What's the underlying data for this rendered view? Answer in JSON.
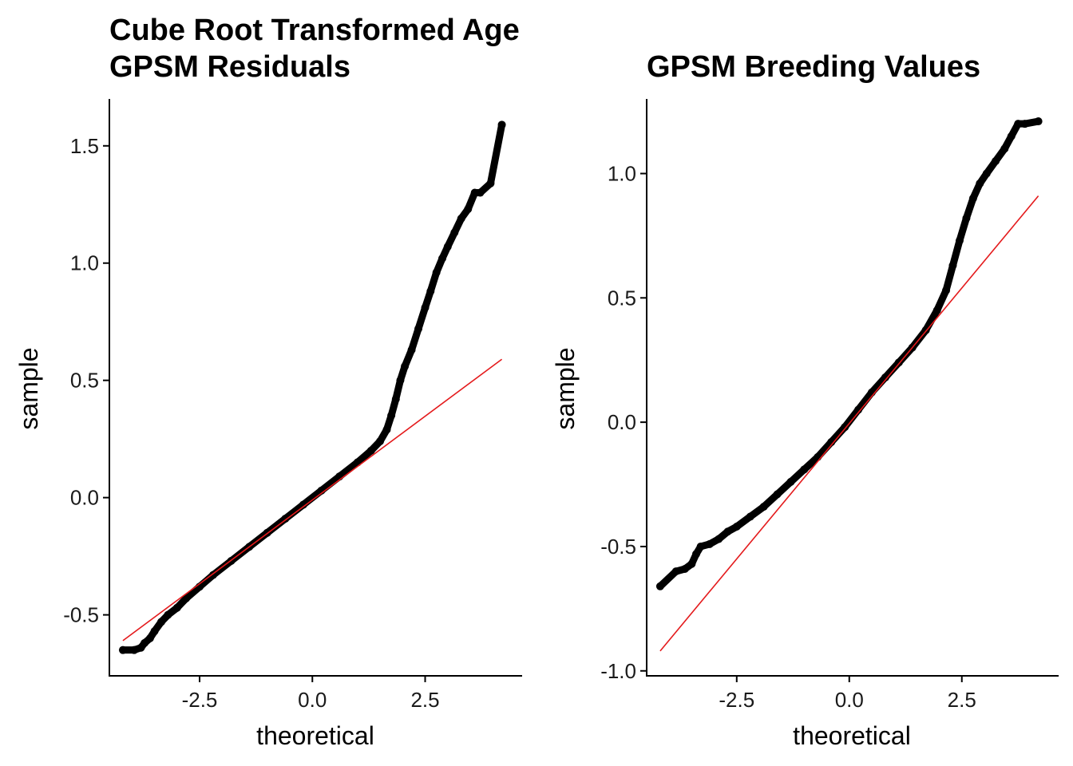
{
  "chart_data": [
    {
      "type": "scatter",
      "title_lines": [
        "Cube Root Transformed Age",
        "GPSM Residuals"
      ],
      "xlabel": "theoretical",
      "ylabel": "sample",
      "xlim": [
        -4.5,
        4.65
      ],
      "ylim": [
        -0.76,
        1.7
      ],
      "xticks": [
        -2.5,
        0.0,
        2.5
      ],
      "xtick_labels": [
        "-2.5",
        "0.0",
        "2.5"
      ],
      "yticks": [
        -0.5,
        0.0,
        0.5,
        1.0,
        1.5
      ],
      "ytick_labels": [
        "-0.5",
        "0.0",
        "0.5",
        "1.0",
        "1.5"
      ],
      "grid": false,
      "legend": "none",
      "point_color": "#000000",
      "line_color": "#e41a1c",
      "reference_line": {
        "x": [
          -4.2,
          4.2
        ],
        "y": [
          -0.61,
          0.59
        ]
      },
      "points": [
        [
          -4.2,
          -0.65
        ],
        [
          -3.95,
          -0.65
        ],
        [
          -3.8,
          -0.64
        ],
        [
          -3.72,
          -0.62
        ],
        [
          -3.6,
          -0.6
        ],
        [
          -3.5,
          -0.57
        ],
        [
          -3.35,
          -0.53
        ],
        [
          -3.2,
          -0.5
        ],
        [
          -3.0,
          -0.47
        ],
        [
          -2.8,
          -0.43
        ],
        [
          -2.5,
          -0.38
        ],
        [
          -2.2,
          -0.33
        ],
        [
          -1.8,
          -0.27
        ],
        [
          -1.4,
          -0.21
        ],
        [
          -1.0,
          -0.15
        ],
        [
          -0.6,
          -0.09
        ],
        [
          -0.2,
          -0.03
        ],
        [
          0.2,
          0.03
        ],
        [
          0.6,
          0.09
        ],
        [
          1.0,
          0.15
        ],
        [
          1.3,
          0.2
        ],
        [
          1.5,
          0.24
        ],
        [
          1.65,
          0.29
        ],
        [
          1.75,
          0.35
        ],
        [
          1.85,
          0.42
        ],
        [
          1.95,
          0.5
        ],
        [
          2.05,
          0.56
        ],
        [
          2.2,
          0.63
        ],
        [
          2.35,
          0.72
        ],
        [
          2.5,
          0.81
        ],
        [
          2.62,
          0.88
        ],
        [
          2.75,
          0.96
        ],
        [
          2.88,
          1.02
        ],
        [
          3.0,
          1.07
        ],
        [
          3.15,
          1.13
        ],
        [
          3.3,
          1.19
        ],
        [
          3.45,
          1.23
        ],
        [
          3.6,
          1.3
        ],
        [
          3.72,
          1.3
        ],
        [
          3.95,
          1.34
        ],
        [
          4.2,
          1.59
        ]
      ]
    },
    {
      "type": "scatter",
      "title_lines": [
        "GPSM Breeding Values"
      ],
      "xlabel": "theoretical",
      "ylabel": "sample",
      "xlim": [
        -4.5,
        4.65
      ],
      "ylim": [
        -1.02,
        1.3
      ],
      "xticks": [
        -2.5,
        0.0,
        2.5
      ],
      "xtick_labels": [
        "-2.5",
        "0.0",
        "2.5"
      ],
      "yticks": [
        -1.0,
        -0.5,
        0.0,
        0.5,
        1.0
      ],
      "ytick_labels": [
        "-1.0",
        "-0.5",
        "0.0",
        "0.5",
        "1.0"
      ],
      "grid": false,
      "legend": "none",
      "point_color": "#000000",
      "line_color": "#e41a1c",
      "reference_line": {
        "x": [
          -4.2,
          4.2
        ],
        "y": [
          -0.92,
          0.91
        ]
      },
      "points": [
        [
          -4.2,
          -0.66
        ],
        [
          -3.85,
          -0.6
        ],
        [
          -3.65,
          -0.59
        ],
        [
          -3.5,
          -0.57
        ],
        [
          -3.4,
          -0.53
        ],
        [
          -3.3,
          -0.5
        ],
        [
          -3.1,
          -0.49
        ],
        [
          -2.9,
          -0.47
        ],
        [
          -2.7,
          -0.44
        ],
        [
          -2.5,
          -0.42
        ],
        [
          -2.2,
          -0.38
        ],
        [
          -1.9,
          -0.34
        ],
        [
          -1.6,
          -0.29
        ],
        [
          -1.3,
          -0.24
        ],
        [
          -1.0,
          -0.19
        ],
        [
          -0.7,
          -0.14
        ],
        [
          -0.4,
          -0.08
        ],
        [
          -0.1,
          -0.02
        ],
        [
          0.2,
          0.05
        ],
        [
          0.5,
          0.12
        ],
        [
          0.8,
          0.18
        ],
        [
          1.1,
          0.24
        ],
        [
          1.4,
          0.3
        ],
        [
          1.7,
          0.37
        ],
        [
          1.95,
          0.45
        ],
        [
          2.15,
          0.53
        ],
        [
          2.3,
          0.63
        ],
        [
          2.45,
          0.73
        ],
        [
          2.6,
          0.82
        ],
        [
          2.75,
          0.9
        ],
        [
          2.9,
          0.96
        ],
        [
          3.05,
          1.0
        ],
        [
          3.25,
          1.05
        ],
        [
          3.45,
          1.1
        ],
        [
          3.6,
          1.15
        ],
        [
          3.75,
          1.2
        ],
        [
          3.9,
          1.2
        ],
        [
          4.2,
          1.21
        ]
      ]
    }
  ]
}
